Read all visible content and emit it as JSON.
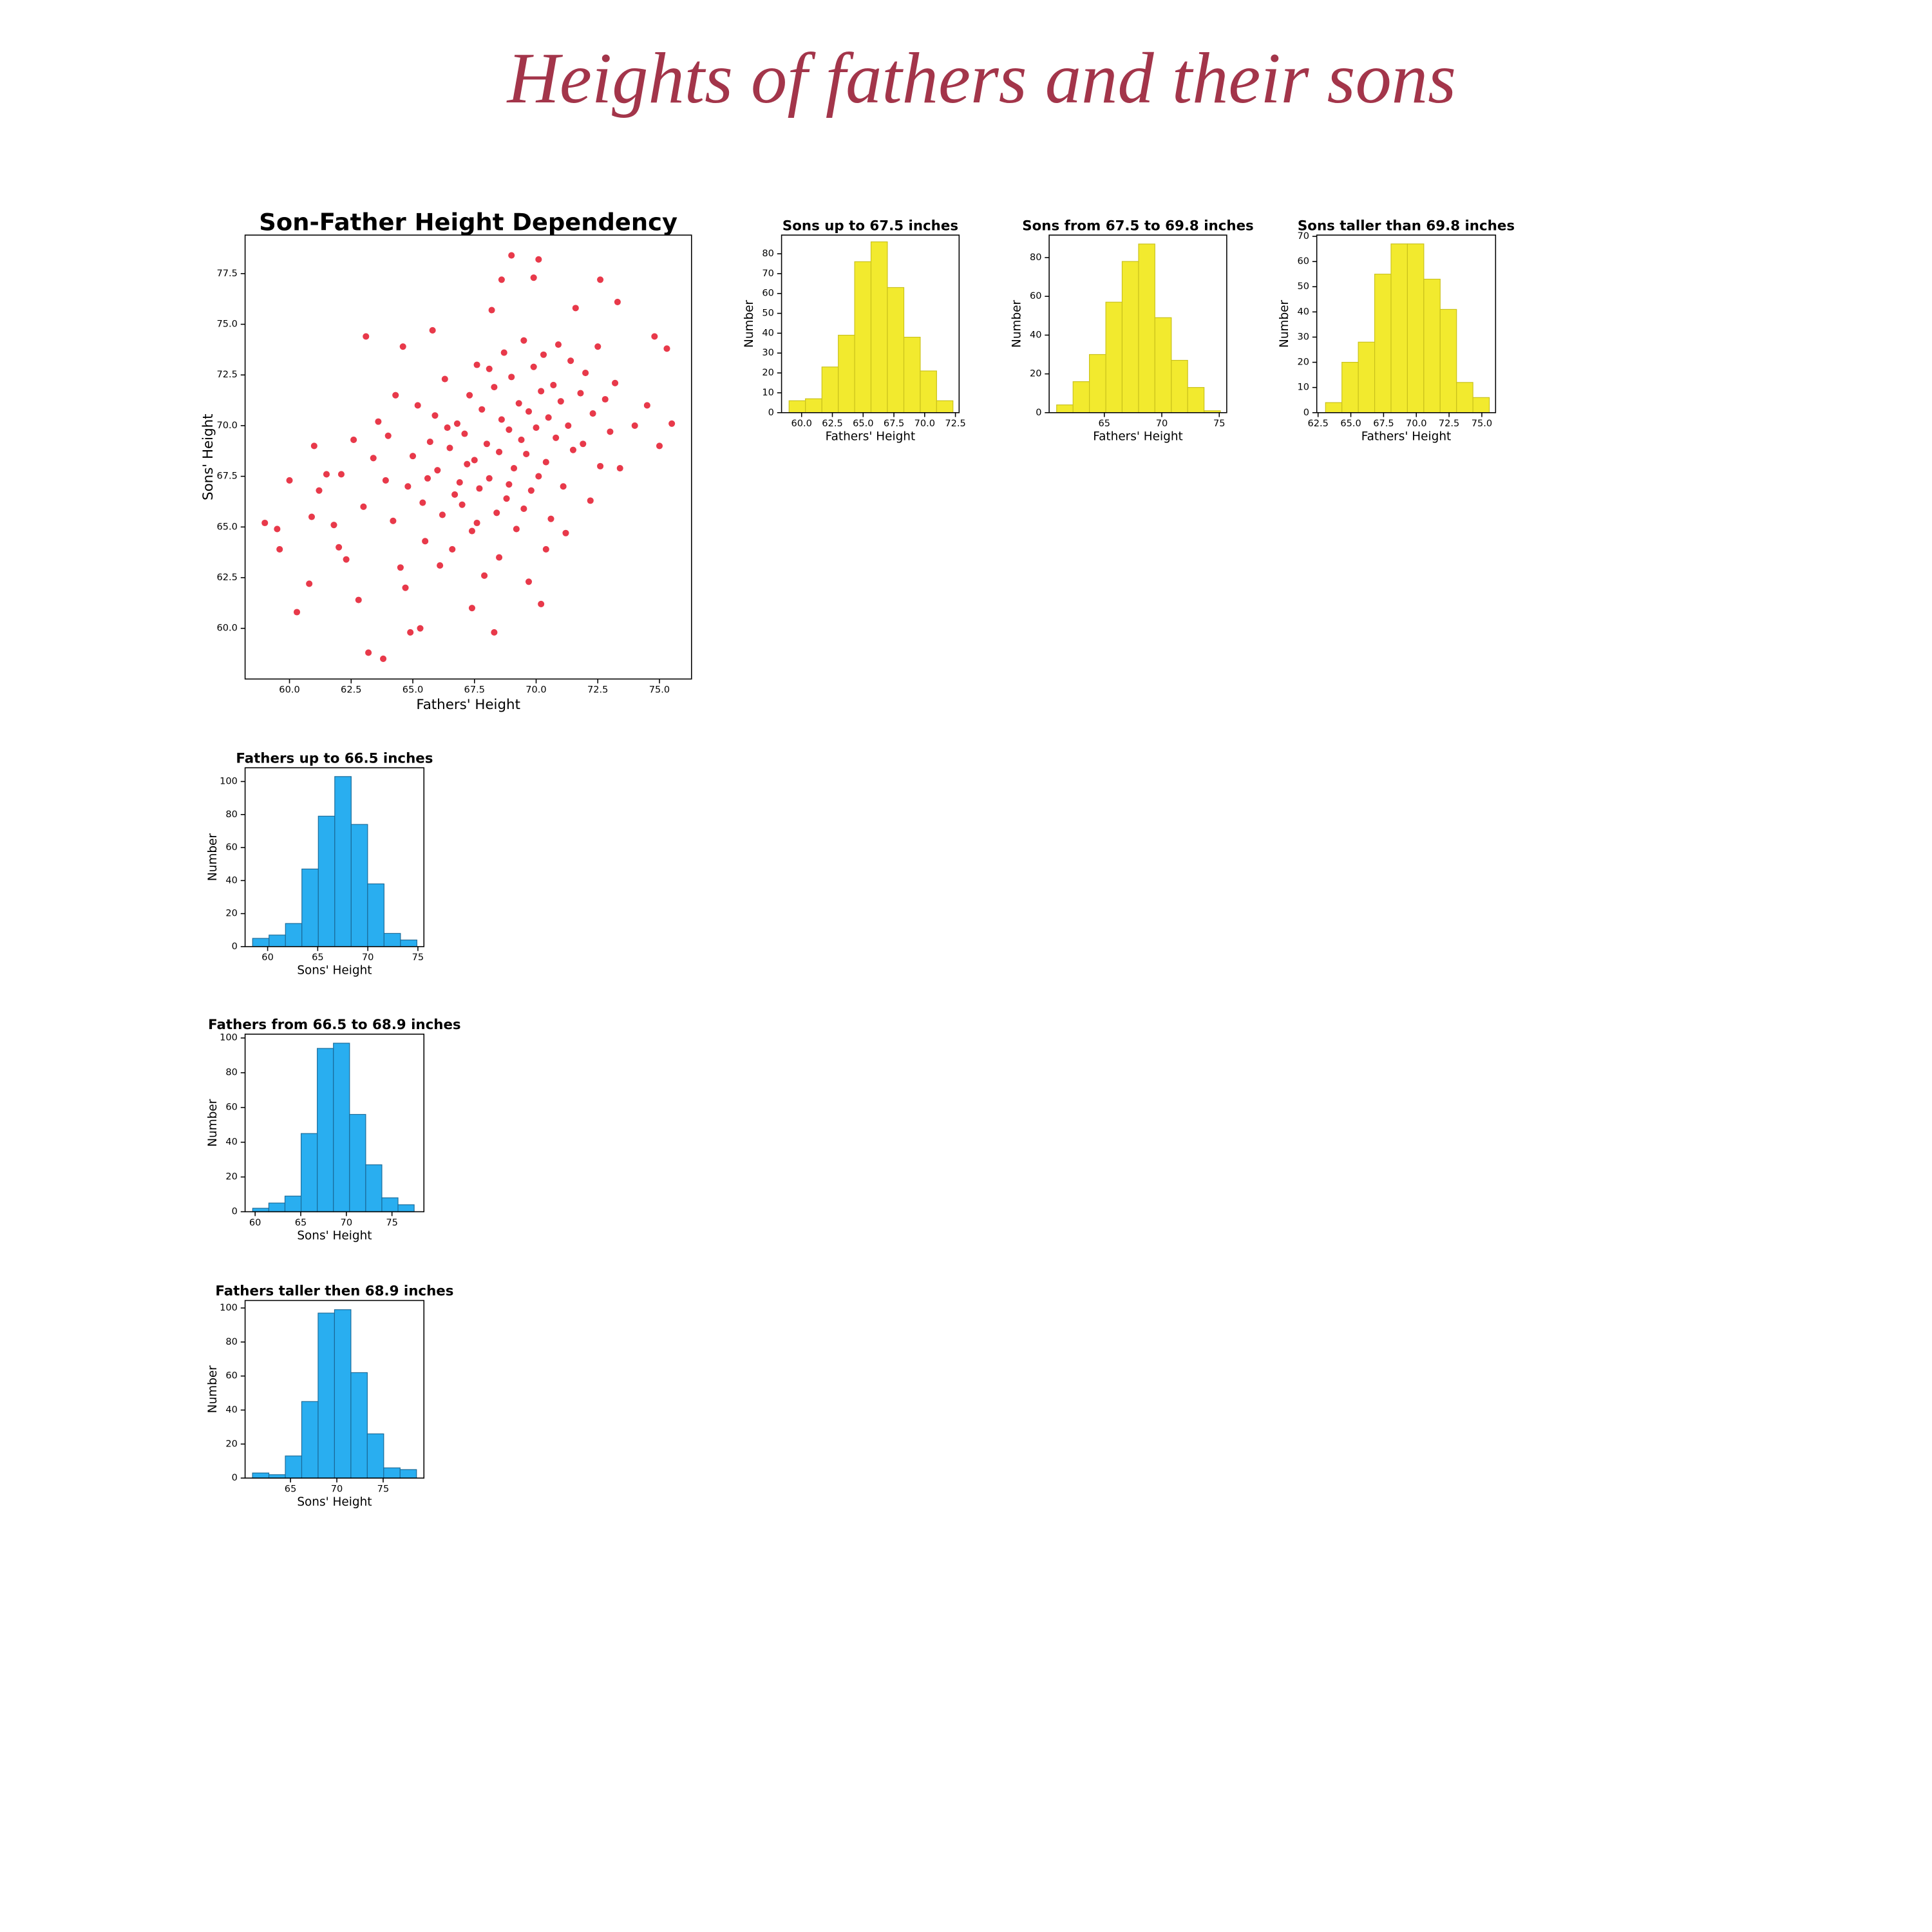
{
  "title": "Heights of fathers and their sons",
  "chart_data": [
    {
      "type": "scatter",
      "title": "Son-Father Height Dependency",
      "xlabel": "Fathers' Height",
      "ylabel": "Sons' Height",
      "color": "#e8394a",
      "xlim": [
        58.2,
        76.3
      ],
      "ylim": [
        57.5,
        79.4
      ],
      "xticks": [
        {
          "value": 60,
          "label": "60.0"
        },
        62.5,
        {
          "value": 65,
          "label": "65.0"
        },
        67.5,
        {
          "value": 70,
          "label": "70.0"
        },
        72.5,
        {
          "value": 75,
          "label": "75.0"
        }
      ],
      "yticks": [
        {
          "value": 60,
          "label": "60.0"
        },
        62.5,
        {
          "value": 65,
          "label": "65.0"
        },
        67.5,
        {
          "value": 70,
          "label": "70.0"
        },
        72.5,
        {
          "value": 75,
          "label": "75.0"
        },
        77.5
      ],
      "x": [
        59.0,
        59.5,
        59.6,
        60.0,
        60.3,
        60.8,
        61.0,
        60.9,
        61.2,
        61.5,
        63.1,
        63.2,
        63.8,
        64.6,
        65.8,
        68.6,
        69.0,
        69.9,
        70.1,
        72.6,
        73.3,
        74.8,
        75.3,
        75.5,
        75.0,
        74.5,
        70.2,
        68.3,
        65.3,
        64.9,
        67.4,
        69.7,
        62.3,
        62.0,
        62.8,
        63.0,
        63.4,
        63.6,
        64.0,
        64.2,
        64.5,
        64.8,
        65.0,
        65.2,
        65.4,
        65.5,
        65.7,
        65.9,
        66.0,
        66.2,
        66.3,
        66.5,
        66.6,
        66.8,
        66.9,
        67.0,
        67.1,
        67.3,
        67.4,
        67.5,
        67.6,
        67.7,
        67.8,
        67.9,
        68.0,
        68.1,
        68.2,
        68.3,
        68.4,
        68.5,
        68.6,
        68.7,
        68.8,
        68.9,
        69.0,
        69.1,
        69.2,
        69.3,
        69.4,
        69.5,
        69.6,
        69.7,
        69.8,
        69.9,
        70.0,
        70.1,
        70.2,
        70.3,
        70.4,
        70.5,
        70.6,
        70.7,
        70.8,
        70.9,
        71.0,
        71.1,
        71.3,
        71.4,
        71.5,
        71.6,
        71.8,
        71.9,
        72.0,
        72.2,
        72.3,
        72.5,
        72.6,
        72.8,
        73.0,
        73.2,
        73.4,
        74.0,
        62.6,
        62.1,
        61.8,
        63.9,
        64.3,
        64.7,
        65.6,
        66.1,
        66.4,
        66.7,
        67.2,
        67.6,
        68.1,
        68.5,
        68.9,
        69.5,
        70.4,
        71.2
      ],
      "values": [
        65.2,
        64.9,
        63.9,
        67.3,
        60.8,
        62.2,
        69.0,
        65.5,
        66.8,
        67.6,
        74.4,
        58.8,
        58.5,
        73.9,
        74.7,
        77.2,
        78.4,
        77.3,
        78.2,
        77.2,
        76.1,
        74.4,
        73.8,
        70.1,
        69.0,
        71.0,
        61.2,
        59.8,
        60.0,
        59.8,
        61.0,
        62.3,
        63.4,
        64.0,
        61.4,
        66.0,
        68.4,
        70.2,
        69.5,
        65.3,
        63.0,
        67.0,
        68.5,
        71.0,
        66.2,
        64.3,
        69.2,
        70.5,
        67.8,
        65.6,
        72.3,
        68.9,
        63.9,
        70.1,
        67.2,
        66.1,
        69.6,
        71.5,
        64.8,
        68.3,
        73.0,
        66.9,
        70.8,
        62.6,
        69.1,
        67.4,
        75.7,
        71.9,
        65.7,
        68.7,
        70.3,
        73.6,
        66.4,
        69.8,
        72.4,
        67.9,
        64.9,
        71.1,
        69.3,
        74.2,
        68.6,
        70.7,
        66.8,
        72.9,
        69.9,
        67.5,
        71.7,
        73.5,
        68.2,
        70.4,
        65.4,
        72.0,
        69.4,
        74.0,
        71.2,
        67.0,
        70.0,
        73.2,
        68.8,
        75.8,
        71.6,
        69.1,
        72.6,
        66.3,
        70.6,
        73.9,
        68.0,
        71.3,
        69.7,
        72.1,
        67.9,
        70.0,
        69.3,
        67.6,
        65.1,
        67.3,
        71.5,
        62.0,
        67.4,
        63.1,
        69.9,
        66.6,
        68.1,
        65.2,
        72.8,
        63.5,
        67.1,
        65.9,
        63.9,
        64.7
      ]
    },
    {
      "type": "histogram",
      "title": "Sons up to 67.5 inches",
      "xlabel": "Fathers' Height",
      "ylabel": "Number",
      "color": "#f2ea2e",
      "edgecolor": "#c9c11c",
      "xlim": [
        58.37,
        72.8
      ],
      "ylim": [
        0,
        89.4
      ],
      "xticks": [
        {
          "value": 60,
          "label": "60.0"
        },
        62.5,
        {
          "value": 65,
          "label": "65.0"
        },
        67.5,
        {
          "value": 70,
          "label": "70.0"
        },
        72.5
      ],
      "yticks": [
        0,
        10,
        20,
        30,
        40,
        50,
        60,
        70,
        80
      ],
      "bins": [
        58.98,
        60.31,
        61.65,
        62.98,
        64.31,
        65.64,
        66.97,
        68.31,
        69.64,
        70.97,
        72.3
      ],
      "values": [
        6,
        7,
        23,
        39,
        76,
        86,
        63,
        38,
        21,
        6
      ]
    },
    {
      "type": "histogram",
      "title": "Sons from 67.5 to 69.8 inches",
      "xlabel": "Fathers' Height",
      "ylabel": "Number",
      "color": "#f2ea2e",
      "edgecolor": "#c9c11c",
      "xlim": [
        60.2,
        75.65
      ],
      "ylim": [
        0,
        91.6
      ],
      "xticks": [
        65,
        70,
        75
      ],
      "yticks": [
        0,
        20,
        40,
        60,
        80
      ],
      "bins": [
        60.85,
        62.28,
        63.7,
        65.13,
        66.55,
        67.98,
        69.4,
        70.83,
        72.25,
        73.68,
        75.1
      ],
      "values": [
        4,
        16,
        30,
        57,
        78,
        87,
        49,
        27,
        13,
        1
      ]
    },
    {
      "type": "histogram",
      "title": "Sons taller than 69.8 inches",
      "xlabel": "Fathers' Height",
      "ylabel": "Number",
      "color": "#f2ea2e",
      "edgecolor": "#c9c11c",
      "xlim": [
        62.4,
        76.05
      ],
      "ylim": [
        0,
        70.5
      ],
      "xticks": [
        62.5,
        {
          "value": 65,
          "label": "65.0"
        },
        67.5,
        {
          "value": 70,
          "label": "70.0"
        },
        72.5,
        {
          "value": 75,
          "label": "75.0"
        }
      ],
      "yticks": [
        0,
        10,
        20,
        30,
        40,
        50,
        60,
        70
      ],
      "bins": [
        63.07,
        64.32,
        65.57,
        66.82,
        68.07,
        69.32,
        70.57,
        71.82,
        73.07,
        74.32,
        75.57
      ],
      "values": [
        4,
        20,
        28,
        55,
        67,
        67,
        53,
        41,
        12,
        6
      ]
    },
    {
      "type": "histogram",
      "title": "Fathers up to 66.5 inches",
      "xlabel": "Sons' Height",
      "ylabel": "Number",
      "color": "#29aef0",
      "edgecolor": "#1a6a98",
      "xlim": [
        57.75,
        75.6
      ],
      "ylim": [
        0,
        108.3
      ],
      "xticks": [
        60,
        65,
        70,
        75
      ],
      "yticks": [
        0,
        20,
        40,
        60,
        80,
        100
      ],
      "bins": [
        58.5,
        60.14,
        61.78,
        63.42,
        65.06,
        66.7,
        68.34,
        69.98,
        71.62,
        73.26,
        74.9
      ],
      "values": [
        5,
        7,
        14,
        47,
        79,
        103,
        74,
        38,
        8,
        4
      ]
    },
    {
      "type": "histogram",
      "title": "Fathers from 66.5 to 68.9 inches",
      "xlabel": "Sons' Height",
      "ylabel": "Number",
      "color": "#29aef0",
      "edgecolor": "#1a6a98",
      "xlim": [
        58.9,
        78.5
      ],
      "ylim": [
        0,
        102.2
      ],
      "xticks": [
        60,
        65,
        70,
        75
      ],
      "yticks": [
        0,
        20,
        40,
        60,
        80,
        100
      ],
      "bins": [
        59.73,
        61.5,
        63.27,
        65.04,
        66.81,
        68.58,
        70.35,
        72.12,
        73.89,
        75.66,
        77.43
      ],
      "values": [
        2,
        5,
        9,
        45,
        94,
        97,
        56,
        27,
        8,
        4
      ]
    },
    {
      "type": "histogram",
      "title": "Fathers taller then 68.9 inches",
      "xlabel": "Sons' Height",
      "ylabel": "Number",
      "color": "#29aef0",
      "edgecolor": "#1a6a98",
      "xlim": [
        60.1,
        79.4
      ],
      "ylim": [
        0,
        104.4
      ],
      "xticks": [
        65,
        70,
        75
      ],
      "yticks": [
        0,
        20,
        40,
        60,
        80,
        100
      ],
      "bins": [
        60.9,
        62.67,
        64.44,
        66.21,
        67.98,
        69.75,
        71.52,
        73.29,
        75.06,
        76.83,
        78.6
      ],
      "values": [
        3,
        2,
        13,
        45,
        97,
        99,
        62,
        26,
        6,
        5
      ]
    }
  ]
}
